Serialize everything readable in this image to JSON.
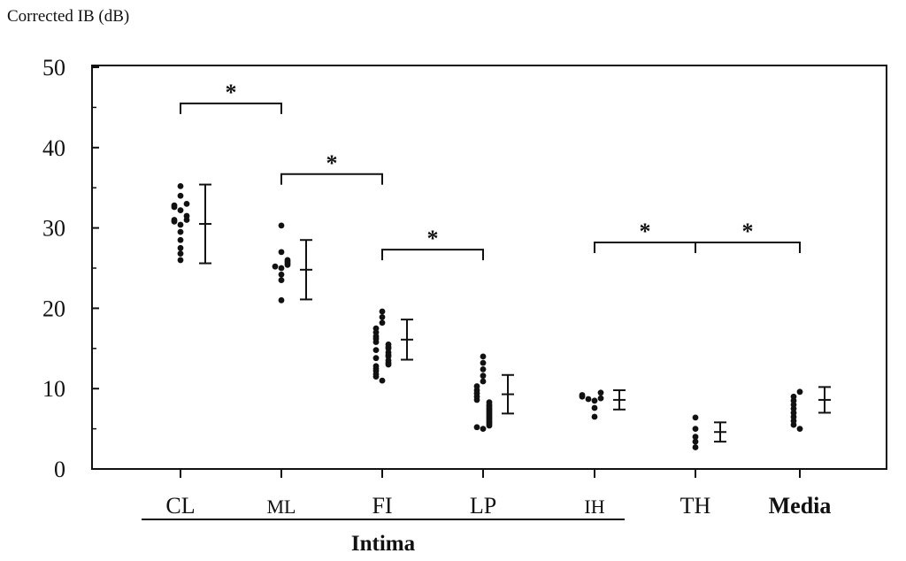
{
  "chart_data": {
    "type": "scatter",
    "ylabel": "Corrected IB (dB)",
    "ylim": [
      0,
      50
    ],
    "yticks": [
      "0",
      "10",
      "20",
      "30",
      "40",
      "50"
    ],
    "grid": false,
    "categories": [
      "CL",
      "ML",
      "FI",
      "LP",
      "IH",
      "TH",
      "Media"
    ],
    "group_label": "Intima",
    "group_members": [
      "CL",
      "ML",
      "FI",
      "LP",
      "IH"
    ],
    "series": [
      {
        "category": "CL",
        "points": [
          35.2,
          34.0,
          33.0,
          32.8,
          32.6,
          32.2,
          31.5,
          31.0,
          31.0,
          30.8,
          30.4,
          29.5,
          28.5,
          27.5,
          26.8,
          26.0
        ],
        "mean": 30.5,
        "sd_low": 25.6,
        "sd_high": 35.4
      },
      {
        "category": "ML",
        "points": [
          30.3,
          27.0,
          26.0,
          25.8,
          25.6,
          25.4,
          25.2,
          25.0,
          24.2,
          23.5,
          21.0
        ],
        "mean": 24.8,
        "sd_low": 21.1,
        "sd_high": 28.5
      },
      {
        "category": "FI",
        "points": [
          19.6,
          18.9,
          18.2,
          17.5,
          17.0,
          16.5,
          16.2,
          15.8,
          15.5,
          15.2,
          15.0,
          14.8,
          14.5,
          14.2,
          14.0,
          13.8,
          13.5,
          13.2,
          13.0,
          12.8,
          12.5,
          12.2,
          11.8,
          11.5,
          11.0
        ],
        "mean": 16.1,
        "sd_low": 13.6,
        "sd_high": 18.6
      },
      {
        "category": "LP",
        "points": [
          14.0,
          13.2,
          12.4,
          11.6,
          10.9,
          10.3,
          9.8,
          9.4,
          9.0,
          8.6,
          8.3,
          8.0,
          7.8,
          7.6,
          7.4,
          7.2,
          7.0,
          6.8,
          6.6,
          6.4,
          6.2,
          6.0,
          5.8,
          5.6,
          5.4,
          5.2,
          5.0
        ],
        "mean": 9.3,
        "sd_low": 6.9,
        "sd_high": 11.7
      },
      {
        "category": "IH",
        "points": [
          9.5,
          9.2,
          9.0,
          8.8,
          8.7,
          8.5,
          7.6,
          6.5
        ],
        "mean": 8.6,
        "sd_low": 7.4,
        "sd_high": 9.8
      },
      {
        "category": "TH",
        "points": [
          6.4,
          5.0,
          4.0,
          3.4,
          2.7
        ],
        "mean": 4.6,
        "sd_low": 3.4,
        "sd_high": 5.8
      },
      {
        "category": "Media",
        "points": [
          9.6,
          9.0,
          8.5,
          8.0,
          7.5,
          7.0,
          6.5,
          6.0,
          5.5,
          5.0
        ],
        "mean": 8.6,
        "sd_low": 7.0,
        "sd_high": 10.2
      }
    ],
    "annotations": [
      {
        "text": "*",
        "from": "CL",
        "to": "ML",
        "y": 45.5
      },
      {
        "text": "*",
        "from": "ML",
        "to": "FI",
        "y": 36.7
      },
      {
        "text": "*",
        "from": "FI",
        "to": "LP",
        "y": 27.3
      },
      {
        "text": "*",
        "from": "IH",
        "to": "TH",
        "y": 28.2
      },
      {
        "text": "*",
        "from": "TH",
        "to": "Media",
        "y": 28.2
      }
    ]
  }
}
